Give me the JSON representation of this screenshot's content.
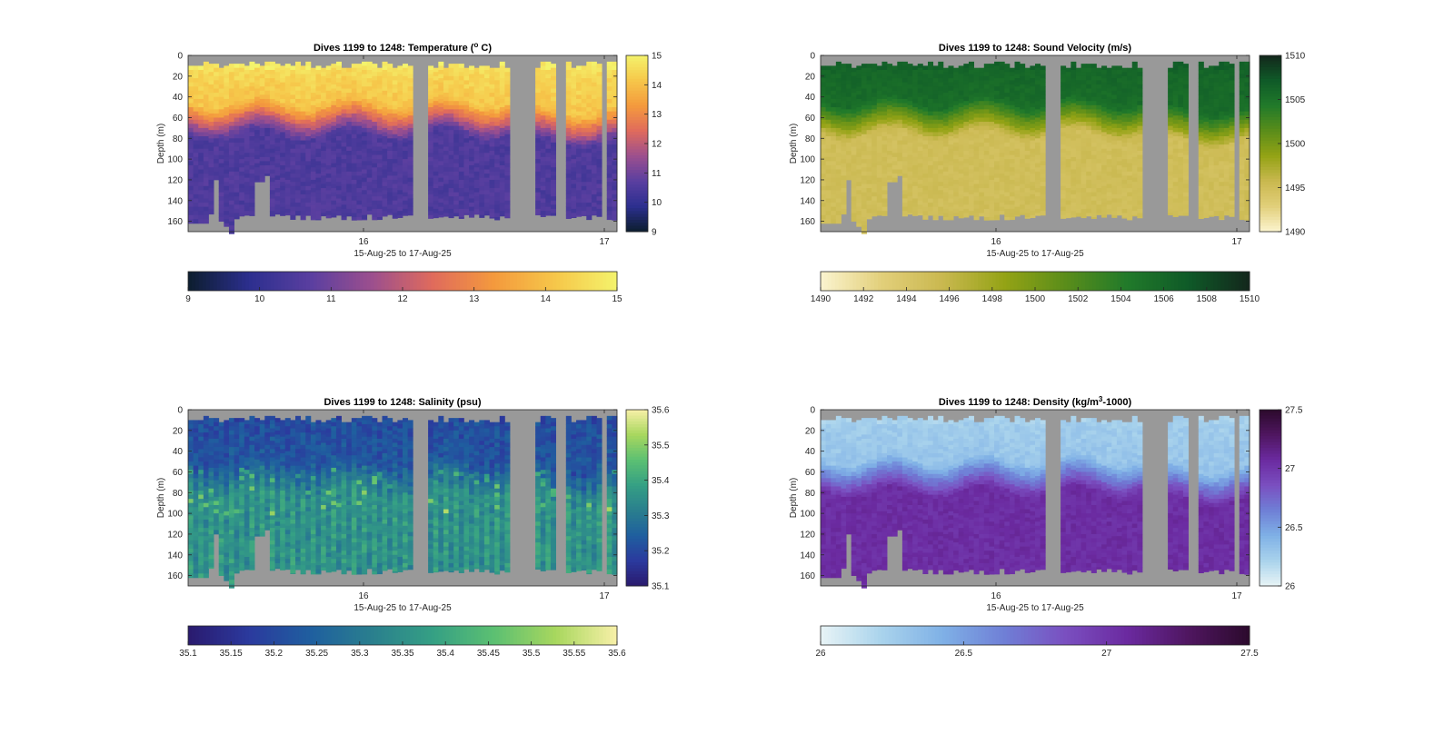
{
  "chart_data": [
    {
      "id": "temp",
      "type": "heatmap",
      "title": "Dives 1199 to 1248: Temperature (° C)",
      "title_parts": [
        "Dives 1199 to 1248: Temperature (",
        "o",
        " C)"
      ],
      "xlabel": "15-Aug-25 to 17-Aug-25",
      "ylabel": "Depth (m)",
      "x_ticks": [
        "16",
        "17"
      ],
      "y_ticks": [
        "0",
        "20",
        "40",
        "60",
        "80",
        "100",
        "120",
        "140",
        "160"
      ],
      "ylim": [
        0,
        170
      ],
      "clim": [
        9,
        15
      ],
      "v_colorbar_ticks": [
        "9",
        "10",
        "11",
        "12",
        "13",
        "14",
        "15"
      ],
      "h_colorbar_ticks": [
        "9",
        "10",
        "11",
        "12",
        "13",
        "14",
        "15"
      ],
      "colormap": [
        "#0c1e2e",
        "#2c2f8f",
        "#5a3fa0",
        "#9c4f8e",
        "#e06b5c",
        "#f49a3d",
        "#f6c74a",
        "#f4f36c"
      ],
      "surface_value": 14.8,
      "mixed_value": 14.1,
      "deep_value": 10.5,
      "gradient_frac": 0.5,
      "thermocline_depth": 55,
      "noise": 0.08
    },
    {
      "id": "sv",
      "type": "heatmap",
      "title": "Dives 1199 to 1248: Sound Velocity (m/s)",
      "title_parts": [
        "Dives 1199 to 1248: Sound Velocity (m/s)"
      ],
      "xlabel": "15-Aug-25 to 17-Aug-25",
      "ylabel": "Depth (m)",
      "x_ticks": [
        "16",
        "17"
      ],
      "y_ticks": [
        "0",
        "20",
        "40",
        "60",
        "80",
        "100",
        "120",
        "140",
        "160"
      ],
      "ylim": [
        0,
        170
      ],
      "clim": [
        1490,
        1510
      ],
      "v_colorbar_ticks": [
        "1490",
        "1495",
        "1500",
        "1505",
        "1510"
      ],
      "h_colorbar_ticks": [
        "1490",
        "1492",
        "1494",
        "1496",
        "1498",
        "1500",
        "1502",
        "1504",
        "1506",
        "1508",
        "1510"
      ],
      "colormap": [
        "#fbf4cf",
        "#e2cf7a",
        "#c9b84f",
        "#94a315",
        "#5a8d1a",
        "#217a2a",
        "#0f5a28",
        "#13271c"
      ],
      "surface_value": 1506.5,
      "mixed_value": 1505.5,
      "deep_value": 1495,
      "gradient_frac": 0.5,
      "thermocline_depth": 55,
      "noise": 0.05
    },
    {
      "id": "sal",
      "type": "heatmap",
      "title": "Dives 1199 to 1248: Salinity (psu)",
      "title_parts": [
        "Dives 1199 to 1248: Salinity (psu)"
      ],
      "xlabel": "15-Aug-25 to 17-Aug-25",
      "ylabel": "Depth (m)",
      "x_ticks": [
        "16",
        "17"
      ],
      "y_ticks": [
        "0",
        "20",
        "40",
        "60",
        "80",
        "100",
        "120",
        "140",
        "160"
      ],
      "ylim": [
        0,
        170
      ],
      "clim": [
        35.1,
        35.6
      ],
      "v_colorbar_ticks": [
        "35.1",
        "35.2",
        "35.3",
        "35.4",
        "35.5",
        "35.6"
      ],
      "h_colorbar_ticks": [
        "35.1",
        "35.15",
        "35.2",
        "35.25",
        "35.3",
        "35.35",
        "35.4",
        "35.45",
        "35.5",
        "35.55",
        "35.6"
      ],
      "colormap": [
        "#2a1a6e",
        "#2b3a9e",
        "#1f5f9f",
        "#2a7f8e",
        "#35a084",
        "#5cc072",
        "#a8d75e",
        "#f8f0a8"
      ],
      "surface_value": 35.2,
      "mixed_value": 35.22,
      "deep_value": 35.35,
      "gradient_frac": 0.55,
      "thermocline_depth": 60,
      "noise": 0.14,
      "stripes": true
    },
    {
      "id": "dens",
      "type": "heatmap",
      "title": "Dives 1199 to 1248: Density (kg/m³-1000)",
      "title_parts": [
        "Dives 1199 to 1248: Density (kg/m",
        "3",
        "-1000)"
      ],
      "xlabel": "15-Aug-25 to 17-Aug-25",
      "ylabel": "Depth (m)",
      "x_ticks": [
        "16",
        "17"
      ],
      "y_ticks": [
        "0",
        "20",
        "40",
        "60",
        "80",
        "100",
        "120",
        "140",
        "160"
      ],
      "ylim": [
        0,
        170
      ],
      "clim": [
        26,
        27.5
      ],
      "v_colorbar_ticks": [
        "26",
        "26.5",
        "27",
        "27.5"
      ],
      "h_colorbar_ticks": [
        "26",
        "26.5",
        "27",
        "27.5"
      ],
      "colormap": [
        "#e8f4f6",
        "#a9d3ec",
        "#7fb0e6",
        "#6f7fd6",
        "#7a4fc0",
        "#6b2aa0",
        "#4f1660",
        "#2c0a2c"
      ],
      "surface_value": 26.22,
      "mixed_value": 26.3,
      "deep_value": 27.05,
      "gradient_frac": 0.45,
      "thermocline_depth": 58,
      "noise": 0.07
    }
  ],
  "colors": {
    "nodata": "#999999",
    "frame": "#262626"
  }
}
